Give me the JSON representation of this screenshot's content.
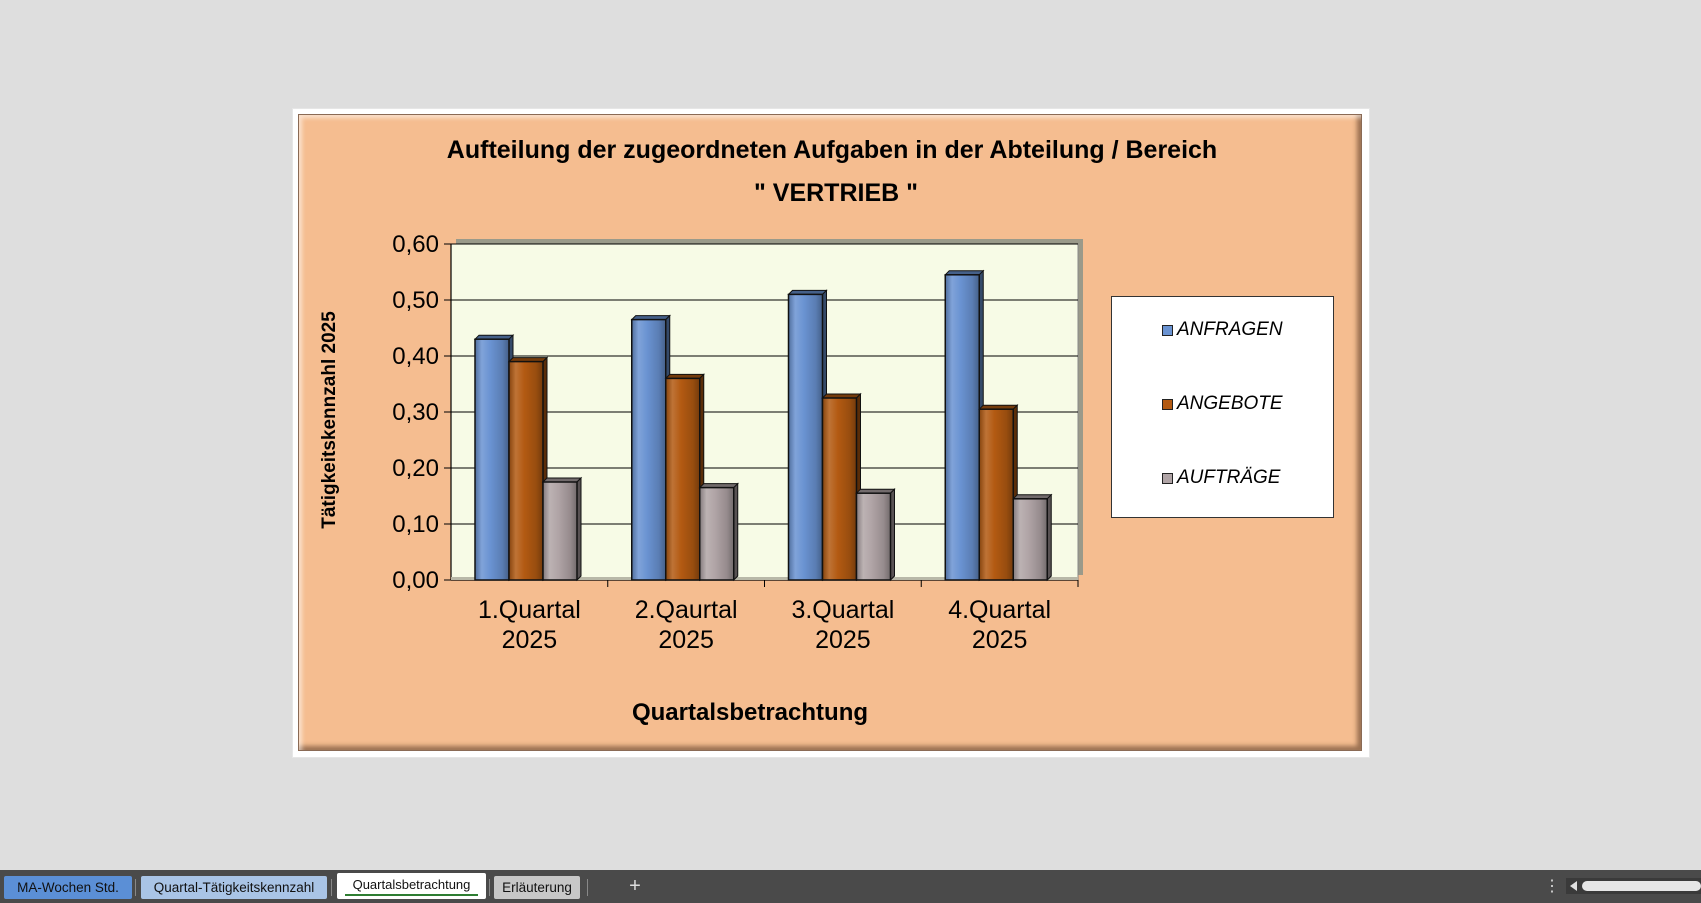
{
  "chart_data": {
    "type": "bar",
    "title": "Aufteilung der zugeordneten Aufgaben in der Abteilung / Bereich",
    "subtitle": "\" VERTRIEB \"",
    "xlabel": "Quartalsbetrachtung",
    "ylabel": "Tätigkeitskennzahl 2025",
    "categories": [
      [
        "1.Quartal",
        "2025"
      ],
      [
        "2.Qaurtal",
        "2025"
      ],
      [
        "3.Quartal",
        "2025"
      ],
      [
        "4.Quartal",
        "2025"
      ]
    ],
    "ylim": [
      0,
      0.6
    ],
    "yticks": [
      0,
      0.1,
      0.2,
      0.3,
      0.4,
      0.5,
      0.6
    ],
    "ytick_labels": [
      "0,00",
      "0,10",
      "0,20",
      "0,30",
      "0,40",
      "0,50",
      "0,60"
    ],
    "grid": true,
    "legend_position": "right",
    "series": [
      {
        "name": "ANFRAGEN",
        "values": [
          0.43,
          0.465,
          0.51,
          0.545
        ],
        "color": "#6a93d2"
      },
      {
        "name": "ANGEBOTE",
        "values": [
          0.39,
          0.36,
          0.325,
          0.305
        ],
        "color": "#b35a12"
      },
      {
        "name": "AUFTRÄGE",
        "values": [
          0.175,
          0.165,
          0.155,
          0.145
        ],
        "color": "#b0a4a6"
      }
    ],
    "plot_background": "#f7fbe6",
    "chart_background": "#f5bd90"
  },
  "sheet_tabs": [
    {
      "label": "MA-Wochen Std."
    },
    {
      "label": "Quartal-Tätigkeitskennzahl"
    },
    {
      "label": "Quartalsbetrachtung"
    },
    {
      "label": "Erläuterung"
    }
  ],
  "toolbar": {
    "add_sheet_label": "+",
    "menu_label": "⋮"
  }
}
